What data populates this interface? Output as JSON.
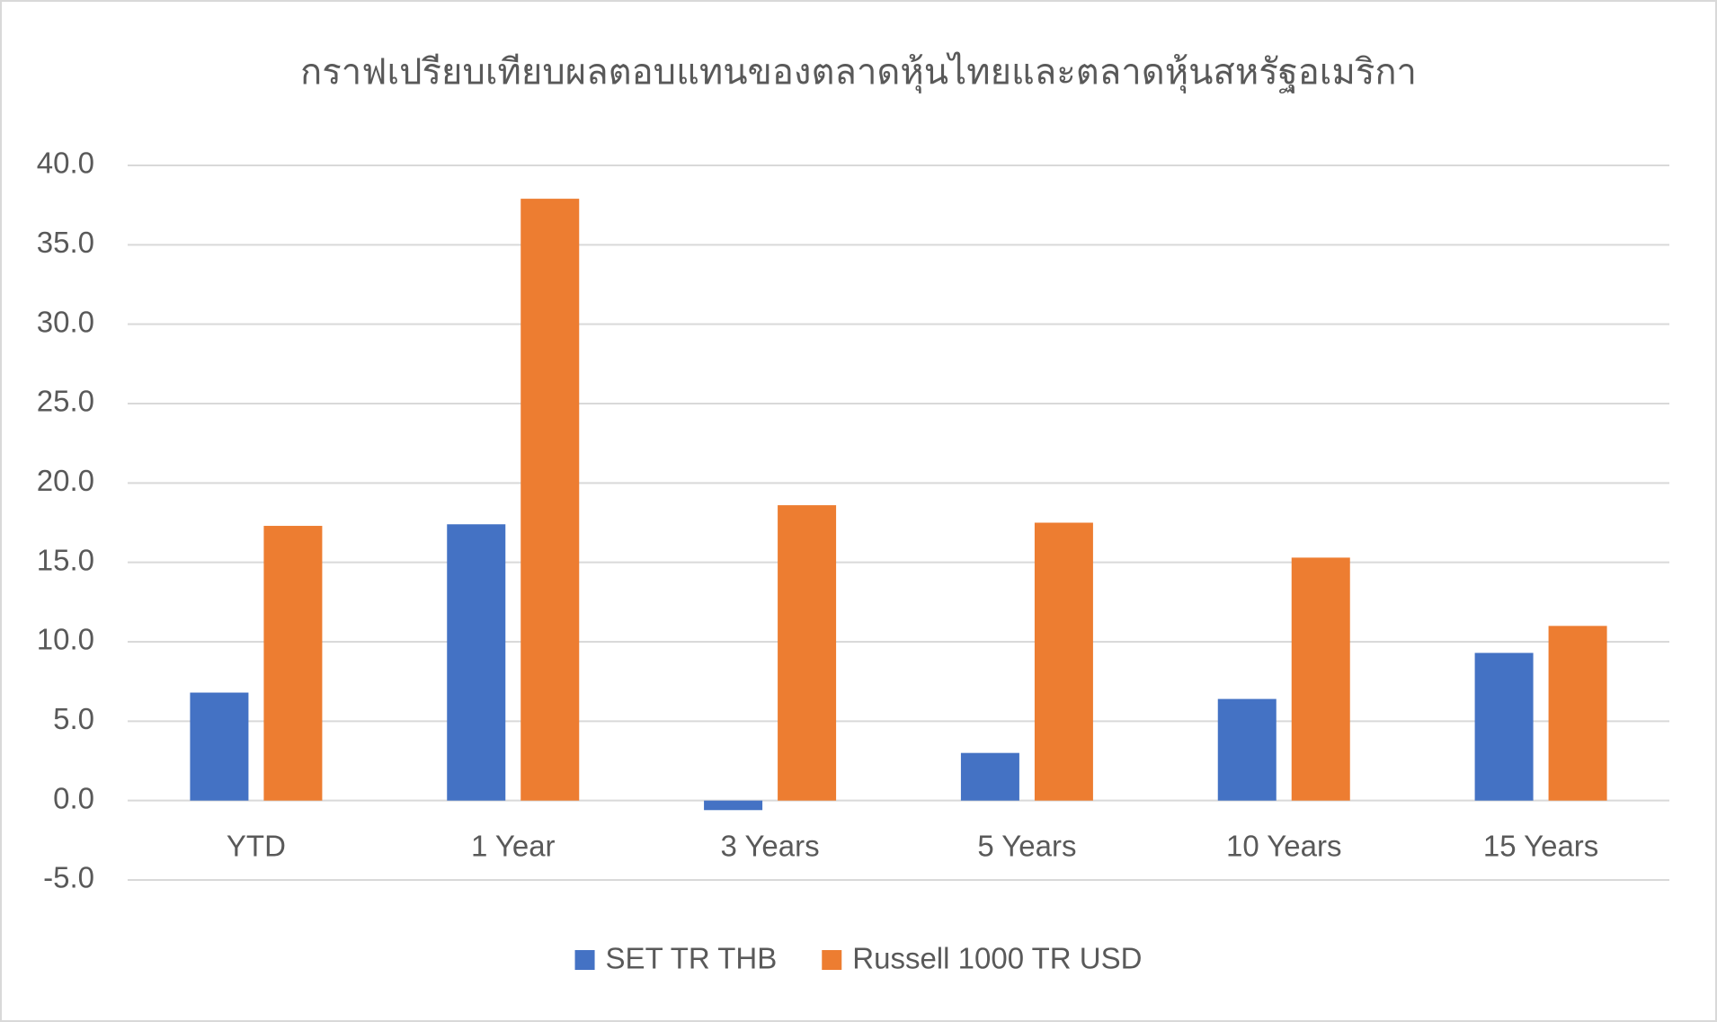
{
  "chart_data": {
    "type": "bar",
    "title": "กราฟเปรียบเทียบผลตอบแทนของตลาดหุ้นไทยและตลาดหุ้นสหรัฐอเมริกา",
    "categories": [
      "YTD",
      "1 Year",
      "3 Years",
      "5 Years",
      "10 Years",
      "15 Years"
    ],
    "series": [
      {
        "name": "SET TR THB",
        "color": "#4472c4",
        "values": [
          6.8,
          17.4,
          -0.6,
          3.0,
          6.4,
          9.3
        ]
      },
      {
        "name": "Russell 1000 TR USD",
        "color": "#ed7d31",
        "values": [
          17.3,
          37.9,
          18.6,
          17.5,
          15.3,
          11.0
        ]
      }
    ],
    "ylim": [
      -5,
      40
    ],
    "yticks": [
      {
        "value": -5,
        "label": "-5.0"
      },
      {
        "value": 0,
        "label": "0.0"
      },
      {
        "value": 5,
        "label": "5.0"
      },
      {
        "value": 10,
        "label": "10.0"
      },
      {
        "value": 15,
        "label": "15.0"
      },
      {
        "value": 20,
        "label": "20.0"
      },
      {
        "value": 25,
        "label": "25.0"
      },
      {
        "value": 30,
        "label": "30.0"
      },
      {
        "value": 35,
        "label": "35.0"
      },
      {
        "value": 40,
        "label": "40.0"
      }
    ],
    "grid": true,
    "legend": "bottom"
  }
}
